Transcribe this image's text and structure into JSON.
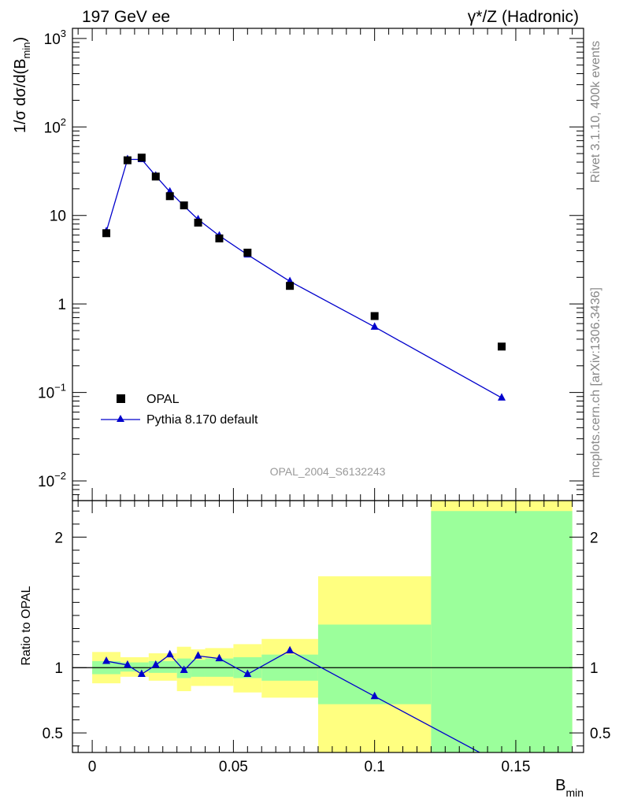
{
  "header": {
    "left_title": "197 GeV ee",
    "right_title": "γ*/Z (Hadronic)"
  },
  "side_labels": {
    "rivet": "Rivet 3.1.10,  400k events",
    "mcplots": "mcplots.cern.ch [arXiv:1306.3436]"
  },
  "analysis_id": "OPAL_2004_S6132243",
  "colors": {
    "data": "#000000",
    "mc": "#0000cc",
    "band_inner": "#9bff9b",
    "band_outer": "#ffff80"
  },
  "chart_data": [
    {
      "type": "scatter",
      "panel": "main",
      "ylabel": "1/σ dσ/d(B",
      "ylabel_sub": "min",
      "ylabel_close": ")",
      "yscale": "log",
      "ylim": [
        0.006,
        1300
      ],
      "xlim": [
        -0.007,
        0.174
      ],
      "ytick_labels": [
        {
          "base": "10",
          "exp": "−2",
          "value": 0.01
        },
        {
          "base": "10",
          "exp": "−1",
          "value": 0.1
        },
        {
          "base": "1",
          "exp": "",
          "value": 1
        },
        {
          "base": "10",
          "exp": "",
          "value": 10
        },
        {
          "base": "10",
          "exp": "2",
          "value": 100
        },
        {
          "base": "10",
          "exp": "3",
          "value": 1000
        }
      ],
      "series": [
        {
          "name": "OPAL",
          "marker": "square",
          "x": [
            0.005,
            0.0125,
            0.0175,
            0.0225,
            0.0275,
            0.0325,
            0.0375,
            0.045,
            0.055,
            0.07,
            0.1,
            0.145
          ],
          "y": [
            6.3,
            42,
            45,
            27.5,
            16.5,
            13,
            8.3,
            5.5,
            3.8,
            1.6,
            0.73,
            0.33
          ]
        },
        {
          "name": "Pythia 8.170 default",
          "marker": "triangle",
          "x": [
            0.005,
            0.0125,
            0.0175,
            0.0225,
            0.0275,
            0.0325,
            0.0375,
            0.045,
            0.055,
            0.07,
            0.1,
            0.145
          ],
          "y": [
            6.6,
            43,
            43,
            28,
            18.5,
            12.8,
            9.0,
            5.9,
            3.6,
            1.8,
            0.55,
            0.087
          ]
        }
      ]
    },
    {
      "type": "line",
      "panel": "ratio",
      "ylabel": "Ratio to OPAL",
      "xlabel": "B",
      "xlabel_sub": "min",
      "ylim": [
        0.35,
        2.28
      ],
      "xlim": [
        -0.007,
        0.174
      ],
      "yticks": [
        0.5,
        1,
        2
      ],
      "ytick_labels": [
        "0.5",
        "1",
        "2"
      ],
      "xticks": [
        0,
        0.05,
        0.1,
        0.15
      ],
      "xtick_labels": [
        "0",
        "0.05",
        "0.1",
        "0.15"
      ],
      "bins": [
        {
          "lo": 0.0,
          "hi": 0.01,
          "inner": [
            0.95,
            1.05
          ],
          "outer": [
            0.88,
            1.12
          ]
        },
        {
          "lo": 0.01,
          "hi": 0.02,
          "inner": [
            0.97,
            1.04
          ],
          "outer": [
            0.93,
            1.08
          ]
        },
        {
          "lo": 0.02,
          "hi": 0.03,
          "inner": [
            0.96,
            1.05
          ],
          "outer": [
            0.9,
            1.11
          ]
        },
        {
          "lo": 0.03,
          "hi": 0.035,
          "inner": [
            0.92,
            1.07
          ],
          "outer": [
            0.82,
            1.16
          ]
        },
        {
          "lo": 0.035,
          "hi": 0.04,
          "inner": [
            0.93,
            1.06
          ],
          "outer": [
            0.86,
            1.14
          ]
        },
        {
          "lo": 0.04,
          "hi": 0.05,
          "inner": [
            0.93,
            1.07
          ],
          "outer": [
            0.86,
            1.15
          ]
        },
        {
          "lo": 0.05,
          "hi": 0.06,
          "inner": [
            0.92,
            1.08
          ],
          "outer": [
            0.81,
            1.18
          ]
        },
        {
          "lo": 0.06,
          "hi": 0.08,
          "inner": [
            0.9,
            1.1
          ],
          "outer": [
            0.77,
            1.22
          ]
        },
        {
          "lo": 0.08,
          "hi": 0.12,
          "inner": [
            0.72,
            1.33
          ],
          "outer": [
            0.3,
            1.7
          ]
        },
        {
          "lo": 0.12,
          "hi": 0.17,
          "inner": [
            0.3,
            2.2
          ],
          "outer": [
            0.3,
            2.4
          ]
        }
      ],
      "reference": 1.0,
      "series": [
        {
          "name": "Pythia 8.170 default",
          "x": [
            0.005,
            0.0125,
            0.0175,
            0.0225,
            0.0275,
            0.0325,
            0.0375,
            0.045,
            0.055,
            0.07,
            0.1,
            0.145
          ],
          "y": [
            1.05,
            1.02,
            0.95,
            1.02,
            1.1,
            0.98,
            1.09,
            1.07,
            0.95,
            1.13,
            0.78,
            0.26
          ]
        }
      ]
    }
  ]
}
